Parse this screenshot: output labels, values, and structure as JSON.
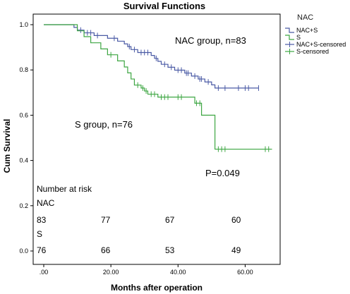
{
  "chart_data": {
    "type": "line",
    "title": "Survival Functions",
    "xlabel": "Months after operation",
    "ylabel": "Cum Survival",
    "xlim": [
      0,
      70
    ],
    "ylim": [
      0,
      1.05
    ],
    "xticks": [
      ".00",
      "20.00",
      "40.00",
      "60.00"
    ],
    "xtick_values": [
      0,
      20,
      40,
      60
    ],
    "yticks": [
      "0.0",
      "0.2",
      "0.4",
      "0.6",
      "0.8",
      "1.0"
    ],
    "ytick_values": [
      0.0,
      0.2,
      0.4,
      0.6,
      0.8,
      1.0
    ],
    "legend": {
      "title": "NAC",
      "position": "top-right",
      "entries": [
        "NAC+S",
        "S",
        "NAC+S-censored",
        "S-censored"
      ]
    },
    "series": [
      {
        "name": "NAC+S",
        "color": "#4a5aa5",
        "steps": [
          [
            0,
            1.0
          ],
          [
            9,
            0.988
          ],
          [
            10,
            0.976
          ],
          [
            12,
            0.964
          ],
          [
            15,
            0.952
          ],
          [
            19,
            0.94
          ],
          [
            22,
            0.927
          ],
          [
            24,
            0.915
          ],
          [
            25,
            0.903
          ],
          [
            26,
            0.89
          ],
          [
            28,
            0.877
          ],
          [
            32,
            0.864
          ],
          [
            33,
            0.851
          ],
          [
            34,
            0.838
          ],
          [
            35,
            0.825
          ],
          [
            37,
            0.812
          ],
          [
            39,
            0.799
          ],
          [
            42,
            0.786
          ],
          [
            44,
            0.773
          ],
          [
            46,
            0.76
          ],
          [
            48,
            0.747
          ],
          [
            50,
            0.734
          ],
          [
            51,
            0.72
          ],
          [
            64,
            0.72
          ]
        ],
        "censored": [
          [
            11,
            0.976
          ],
          [
            13,
            0.964
          ],
          [
            14,
            0.964
          ],
          [
            16,
            0.952
          ],
          [
            21,
            0.94
          ],
          [
            25.5,
            0.903
          ],
          [
            27,
            0.89
          ],
          [
            29,
            0.877
          ],
          [
            30,
            0.877
          ],
          [
            31,
            0.877
          ],
          [
            33.5,
            0.851
          ],
          [
            36,
            0.825
          ],
          [
            38,
            0.812
          ],
          [
            40,
            0.799
          ],
          [
            41,
            0.799
          ],
          [
            42.5,
            0.786
          ],
          [
            43,
            0.786
          ],
          [
            45,
            0.773
          ],
          [
            46.5,
            0.76
          ],
          [
            47,
            0.76
          ],
          [
            49,
            0.747
          ],
          [
            52,
            0.72
          ],
          [
            54,
            0.72
          ],
          [
            58,
            0.72
          ],
          [
            60,
            0.72
          ],
          [
            61,
            0.72
          ],
          [
            64,
            0.72
          ]
        ]
      },
      {
        "name": "S",
        "color": "#3da642",
        "steps": [
          [
            0,
            1.0
          ],
          [
            10,
            0.973
          ],
          [
            12,
            0.947
          ],
          [
            14,
            0.92
          ],
          [
            17,
            0.893
          ],
          [
            19,
            0.867
          ],
          [
            22,
            0.84
          ],
          [
            24,
            0.813
          ],
          [
            25,
            0.787
          ],
          [
            26,
            0.76
          ],
          [
            27,
            0.733
          ],
          [
            29,
            0.72
          ],
          [
            30,
            0.707
          ],
          [
            31,
            0.693
          ],
          [
            34,
            0.68
          ],
          [
            45,
            0.653
          ],
          [
            47,
            0.6
          ],
          [
            51,
            0.45
          ],
          [
            68,
            0.45
          ]
        ],
        "censored": [
          [
            20,
            0.867
          ],
          [
            28,
            0.733
          ],
          [
            29.5,
            0.72
          ],
          [
            30.5,
            0.707
          ],
          [
            32,
            0.693
          ],
          [
            33,
            0.693
          ],
          [
            35,
            0.68
          ],
          [
            36,
            0.68
          ],
          [
            37,
            0.68
          ],
          [
            40,
            0.68
          ],
          [
            41,
            0.68
          ],
          [
            45.5,
            0.653
          ],
          [
            46.5,
            0.653
          ],
          [
            52,
            0.45
          ],
          [
            53,
            0.45
          ],
          [
            54,
            0.45
          ],
          [
            66,
            0.45
          ],
          [
            67,
            0.45
          ]
        ]
      }
    ],
    "annotations": {
      "nac_group": "NAC group, n=83",
      "s_group": "S group, n=76",
      "p_value": "P=0.049"
    },
    "number_at_risk": {
      "title": "Number at risk",
      "rows": [
        {
          "label": "NAC",
          "values": [
            "83",
            "77",
            "67",
            "60"
          ]
        },
        {
          "label": "S",
          "values": [
            "76",
            "66",
            "53",
            "49"
          ]
        }
      ]
    }
  }
}
